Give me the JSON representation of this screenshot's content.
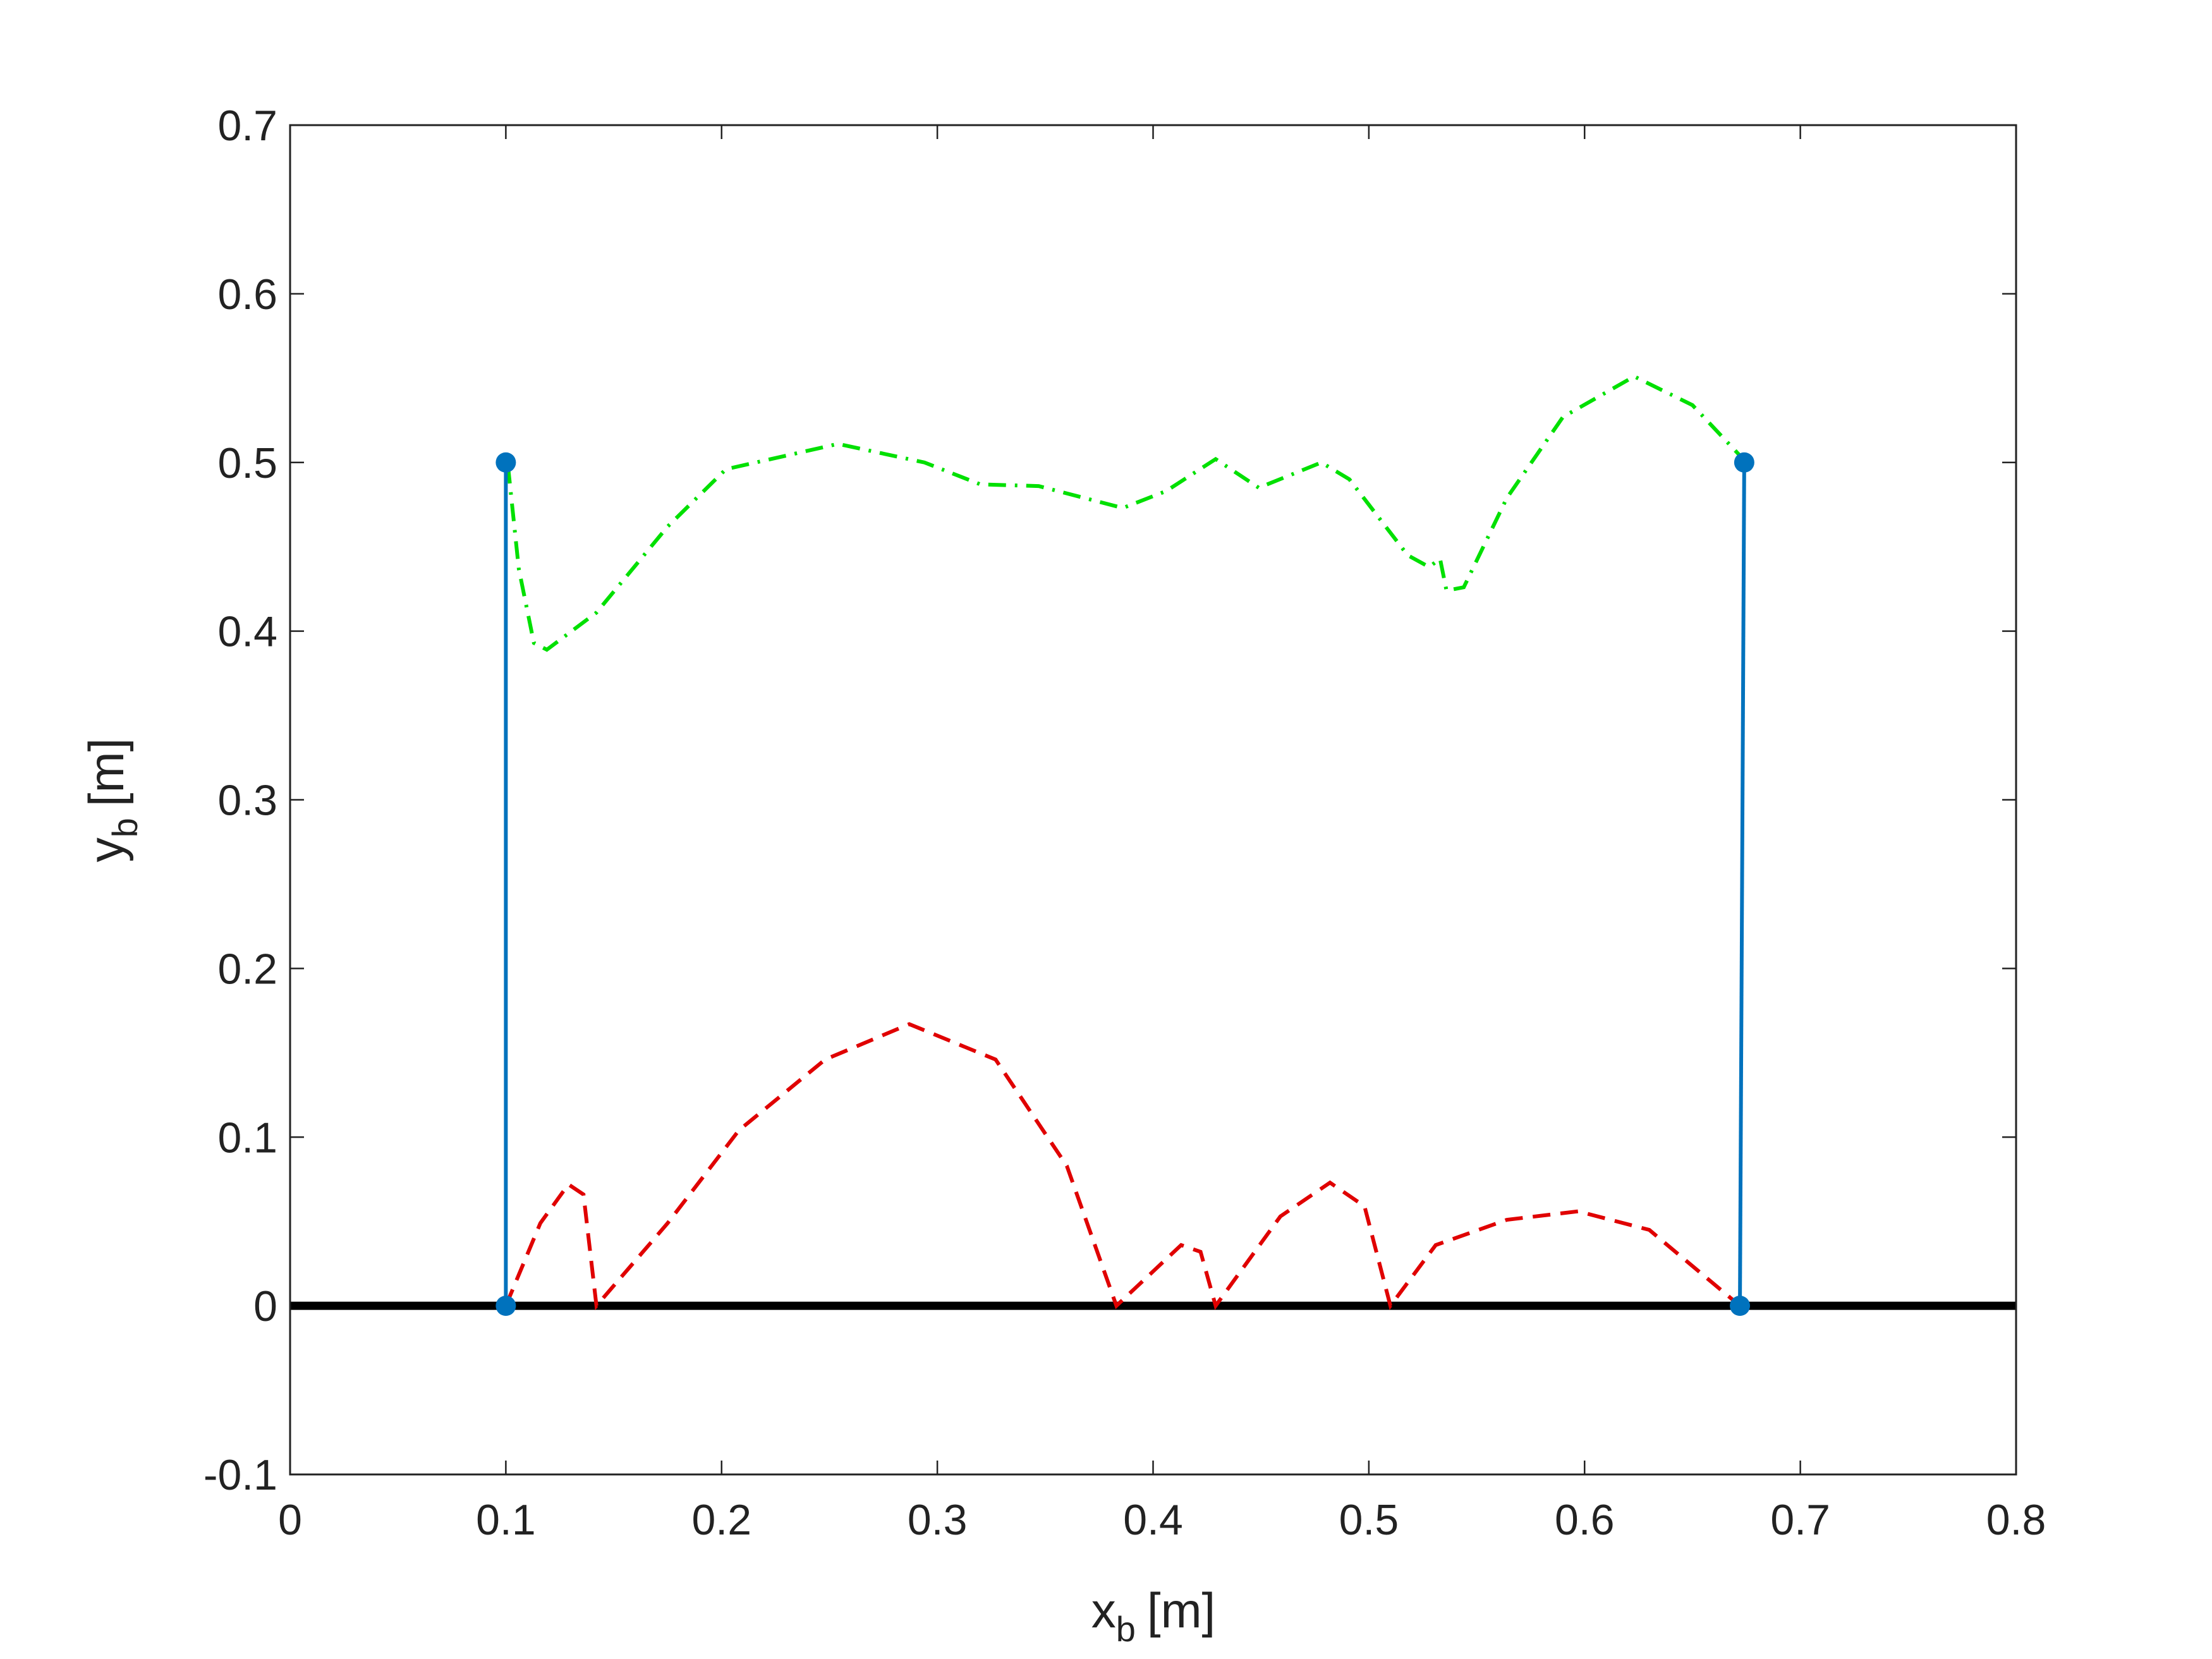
{
  "chart_data": {
    "type": "line",
    "xlabel": {
      "text": "x",
      "subscript": "b",
      "suffix": "[m]"
    },
    "ylabel": {
      "text": "y",
      "subscript": "b",
      "suffix": "[m]"
    },
    "xlim": [
      0,
      0.8
    ],
    "xticks": [
      0,
      0.1,
      0.2,
      0.3,
      0.4,
      0.5,
      0.6,
      0.7,
      0.8
    ],
    "ylim": [
      -0.1,
      0.7
    ],
    "yticks": [
      -0.1,
      0,
      0.1,
      0.2,
      0.3,
      0.4,
      0.5,
      0.6,
      0.7
    ],
    "grid": false,
    "series": [
      {
        "color": "#000000",
        "style": "solid",
        "linewidth": 13,
        "markers": false,
        "x": [
          0,
          0.8
        ],
        "values": [
          0,
          0
        ]
      },
      {
        "color": "#00e000",
        "style": "dashdot",
        "linewidth": 6,
        "markers": false,
        "x": [
          0.101,
          0.106,
          0.113,
          0.119,
          0.142,
          0.175,
          0.202,
          0.254,
          0.294,
          0.32,
          0.347,
          0.386,
          0.406,
          0.429,
          0.449,
          0.478,
          0.491,
          0.518,
          0.528,
          0.533,
          0.536,
          0.544,
          0.564,
          0.59,
          0.623,
          0.65,
          0.675
        ],
        "values": [
          0.498,
          0.437,
          0.393,
          0.389,
          0.411,
          0.462,
          0.496,
          0.511,
          0.5,
          0.487,
          0.486,
          0.473,
          0.483,
          0.502,
          0.485,
          0.5,
          0.49,
          0.445,
          0.438,
          0.443,
          0.424,
          0.426,
          0.479,
          0.527,
          0.551,
          0.534,
          0.5
        ]
      },
      {
        "color": "#e00000",
        "style": "dash",
        "linewidth": 6,
        "markers": false,
        "x": [
          0.1,
          0.116,
          0.129,
          0.136,
          0.142,
          0.175,
          0.208,
          0.248,
          0.287,
          0.327,
          0.36,
          0.383,
          0.413,
          0.422,
          0.429,
          0.459,
          0.482,
          0.498,
          0.51,
          0.531,
          0.564,
          0.597,
          0.63,
          0.672
        ],
        "values": [
          0,
          0.049,
          0.072,
          0.066,
          0,
          0.049,
          0.104,
          0.146,
          0.167,
          0.146,
          0.083,
          0,
          0.036,
          0.032,
          0,
          0.053,
          0.073,
          0.059,
          0,
          0.036,
          0.051,
          0.056,
          0.045,
          0
        ]
      },
      {
        "color": "#0072bd",
        "style": "solid",
        "linewidth": 6,
        "markers": true,
        "x": [
          0.1,
          0.1
        ],
        "values": [
          0.5,
          0
        ]
      },
      {
        "color": "#0072bd",
        "style": "solid",
        "linewidth": 6,
        "markers": true,
        "x": [
          0.674,
          0.672
        ],
        "values": [
          0.5,
          0
        ]
      }
    ]
  }
}
